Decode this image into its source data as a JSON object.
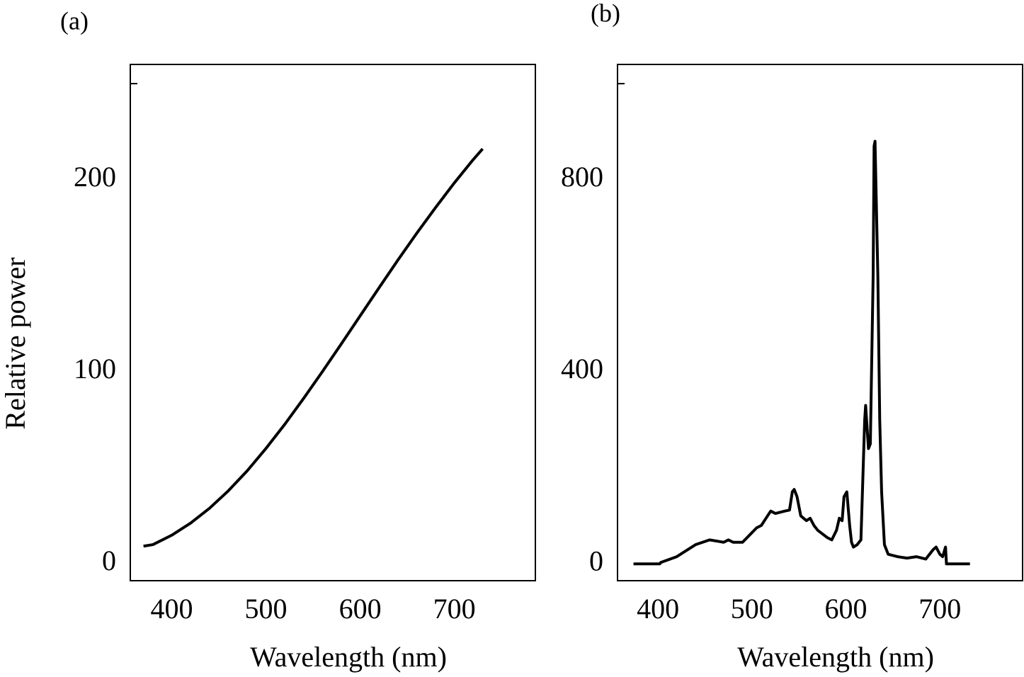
{
  "chart_data": [
    {
      "type": "line",
      "panel_label": "(a)",
      "xlabel": "Wavelength (nm)",
      "ylabel": "Relative power",
      "color": "#000000",
      "x": [
        370,
        380,
        400,
        420,
        440,
        460,
        480,
        500,
        520,
        540,
        560,
        580,
        600,
        620,
        640,
        660,
        680,
        700,
        720,
        730
      ],
      "values": [
        9,
        9.8,
        14.7,
        21,
        28.7,
        37.8,
        48.2,
        59.9,
        72.5,
        86,
        100,
        114.4,
        129,
        143.6,
        158,
        172,
        185.4,
        198.3,
        210.4,
        216
      ],
      "xlim": [
        356,
        786
      ],
      "ylim": [
        -9,
        260
      ],
      "xticks": [
        400,
        500,
        600,
        700
      ],
      "yticks": [
        0,
        100,
        200
      ],
      "minor_yticks": [
        250
      ]
    },
    {
      "type": "line",
      "panel_label": "(b)",
      "xlabel": "Wavelength (nm)",
      "color": "#000000",
      "x": [
        374,
        402,
        403,
        420,
        440,
        455,
        470,
        475,
        480,
        490,
        500,
        505,
        510,
        515,
        520,
        525,
        535,
        540,
        543,
        545,
        548,
        552,
        558,
        562,
        566,
        570,
        580,
        585,
        590,
        593,
        596,
        598,
        601,
        604,
        606,
        608,
        612,
        616,
        620,
        621,
        624,
        626,
        629,
        630,
        631,
        634,
        636,
        638,
        641,
        645,
        655,
        665,
        675,
        685,
        693,
        696,
        700,
        703,
        706,
        707,
        732
      ],
      "values": [
        0,
        0,
        3,
        15,
        40,
        50,
        45,
        50,
        45,
        45,
        65,
        75,
        80,
        95,
        110,
        105,
        110,
        112,
        150,
        155,
        140,
        100,
        90,
        95,
        80,
        70,
        55,
        50,
        70,
        95,
        90,
        140,
        150,
        80,
        45,
        35,
        40,
        50,
        300,
        330,
        240,
        250,
        600,
        870,
        880,
        600,
        300,
        150,
        40,
        20,
        15,
        12,
        15,
        10,
        30,
        35,
        20,
        15,
        35,
        0,
        0
      ],
      "xlim": [
        357,
        788
      ],
      "ylim": [
        -35,
        1040
      ],
      "xticks": [
        400,
        500,
        600,
        700
      ],
      "yticks": [
        0,
        400,
        800
      ],
      "minor_yticks": [
        1000
      ]
    }
  ]
}
